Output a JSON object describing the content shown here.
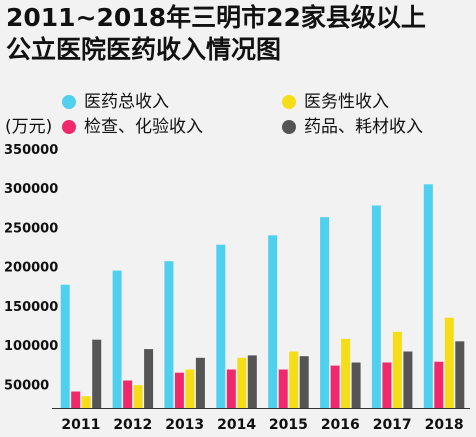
{
  "chart_data": {
    "type": "bar",
    "title_line1": "2011~2018年三明市22家县级以上",
    "title_line2": "公立医院医药收入情况图",
    "unit": "(万元)",
    "categories": [
      "2011",
      "2012",
      "2013",
      "2014",
      "2015",
      "2016",
      "2017",
      "2018"
    ],
    "y_ticks": [
      "50000",
      "100000",
      "150000",
      "200000",
      "250000",
      "300000",
      "350000"
    ],
    "ylim": [
      20000,
      355000
    ],
    "series": [
      {
        "name": "医药总收入",
        "color": "#4fd0ee",
        "values": [
          177000,
          195000,
          207000,
          228000,
          240000,
          263000,
          278000,
          305000
        ]
      },
      {
        "name": "检查、化验收入",
        "color": "#f0286c",
        "values": [
          41000,
          55000,
          65000,
          69000,
          69000,
          74000,
          78000,
          79000
        ]
      },
      {
        "name": "医务性收入",
        "color": "#f5de18",
        "values": [
          35000,
          49000,
          69000,
          84000,
          92000,
          108000,
          117000,
          135000
        ]
      },
      {
        "name": "药品、耗材收入",
        "color": "#555555",
        "values": [
          107000,
          95000,
          84000,
          87000,
          86000,
          78000,
          92000,
          105000
        ]
      }
    ],
    "legend_placement": "top",
    "grid": false
  }
}
